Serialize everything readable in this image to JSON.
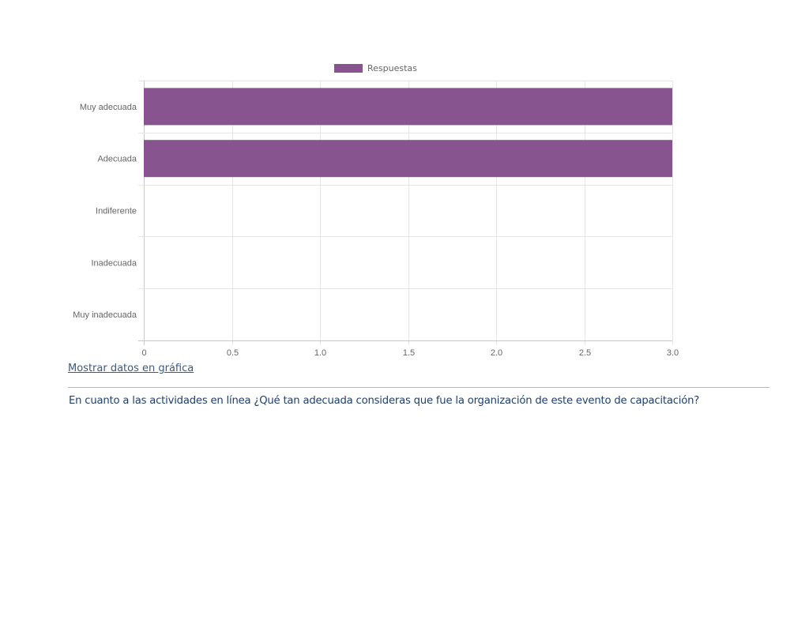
{
  "chart_data": {
    "type": "bar",
    "orientation": "horizontal",
    "categories": [
      "Muy adecuada",
      "Adecuada",
      "Indiferente",
      "Inadecuada",
      "Muy inadecuada"
    ],
    "series": [
      {
        "name": "Respuestas",
        "values": [
          3,
          3,
          0,
          0,
          0
        ],
        "color": "#87548f"
      }
    ],
    "xlim": [
      0,
      3.0
    ],
    "x_ticks": [
      "0",
      "0.5",
      "1.0",
      "1.5",
      "2.0",
      "2.5",
      "3.0"
    ],
    "grid": true,
    "legend_position": "top"
  },
  "links": {
    "show_chart_data": "Mostrar datos en gráfica"
  },
  "question": {
    "text": "En cuanto a las actividades en línea ¿Qué tan adecuada consideras que fue la organización de este evento de capacitación?"
  },
  "colors": {
    "bar": "#87548f",
    "link": "#3d5a80",
    "question": "#1f3f6e"
  }
}
